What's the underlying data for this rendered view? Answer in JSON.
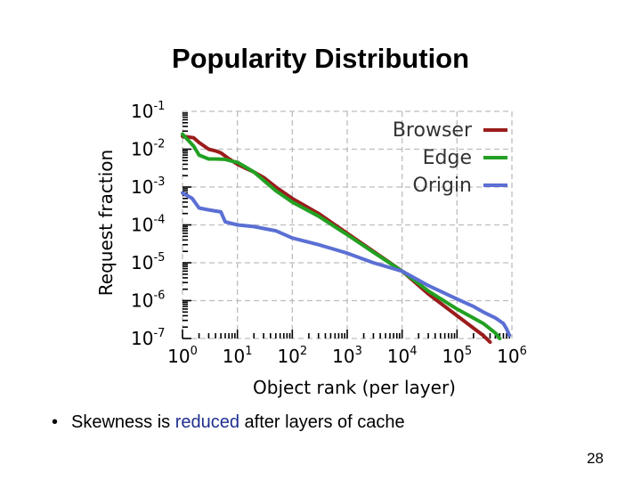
{
  "slide": {
    "title": "Popularity Distribution",
    "bullet": {
      "marker": "•",
      "before": "Skewness is ",
      "highlight": "reduced",
      "after": " after layers of cache"
    },
    "page_number": "28"
  },
  "colors": {
    "browser": "#9b1c1c",
    "edge": "#22a022",
    "origin": "#5b6fd4",
    "highlight": "#1f2f8f"
  },
  "chart_data": {
    "type": "line",
    "title": "",
    "xlabel": "Object rank (per layer)",
    "ylabel": "Request fraction",
    "x_scale": "log",
    "y_scale": "log",
    "xlim": [
      1,
      1000000
    ],
    "ylim": [
      1e-07,
      0.1
    ],
    "x_ticks": [
      {
        "base": "10",
        "exp": "0"
      },
      {
        "base": "10",
        "exp": "1"
      },
      {
        "base": "10",
        "exp": "2"
      },
      {
        "base": "10",
        "exp": "3"
      },
      {
        "base": "10",
        "exp": "4"
      },
      {
        "base": "10",
        "exp": "5"
      },
      {
        "base": "10",
        "exp": "6"
      }
    ],
    "y_ticks": [
      {
        "base": "10",
        "exp": "-1"
      },
      {
        "base": "10",
        "exp": "-2"
      },
      {
        "base": "10",
        "exp": "-3"
      },
      {
        "base": "10",
        "exp": "-4"
      },
      {
        "base": "10",
        "exp": "-5"
      },
      {
        "base": "10",
        "exp": "-6"
      },
      {
        "base": "10",
        "exp": "-7"
      }
    ],
    "grid": true,
    "legend": "top-right",
    "series": [
      {
        "name": "Browser",
        "color": "#9b1c1c",
        "x": [
          1,
          1.6,
          2,
          3,
          4,
          5,
          7,
          10,
          15,
          20,
          30,
          50,
          100,
          300,
          1000,
          3000,
          10000,
          30000,
          100000,
          300000,
          400000
        ],
        "y": [
          0.022,
          0.02,
          0.015,
          0.01,
          0.009,
          0.008,
          0.0056,
          0.004,
          0.003,
          0.0025,
          0.0018,
          0.001,
          0.0005,
          0.0002,
          6e-05,
          2e-05,
          6e-06,
          1.5e-06,
          4e-07,
          1.2e-07,
          8e-08
        ]
      },
      {
        "name": "Edge",
        "color": "#22a022",
        "x": [
          1,
          1.6,
          2,
          3,
          4,
          6,
          8,
          10,
          15,
          20,
          30,
          50,
          100,
          300,
          1000,
          3000,
          10000,
          30000,
          100000,
          300000,
          500000,
          600000
        ],
        "y": [
          0.025,
          0.012,
          0.007,
          0.0055,
          0.0055,
          0.0054,
          0.0048,
          0.0045,
          0.0032,
          0.0025,
          0.0015,
          0.0008,
          0.0004,
          0.00017,
          5.5e-05,
          1.9e-05,
          6e-06,
          1.8e-06,
          6e-07,
          2.5e-07,
          1.4e-07,
          1e-07
        ]
      },
      {
        "name": "Origin",
        "color": "#5b6fd4",
        "x": [
          1,
          1.5,
          2,
          3,
          5,
          6,
          10,
          20,
          50,
          100,
          300,
          1000,
          3000,
          10000,
          30000,
          100000,
          200000,
          300000,
          500000,
          700000,
          800000,
          900000
        ],
        "y": [
          0.0007,
          0.0005,
          0.00028,
          0.00025,
          0.00022,
          0.00012,
          0.0001,
          9e-05,
          7e-05,
          4.5e-05,
          3e-05,
          1.8e-05,
          1e-05,
          6e-06,
          2.5e-06,
          1.1e-06,
          7e-07,
          5e-07,
          3.5e-07,
          2.5e-07,
          1.8e-07,
          1.2e-07
        ]
      }
    ]
  }
}
